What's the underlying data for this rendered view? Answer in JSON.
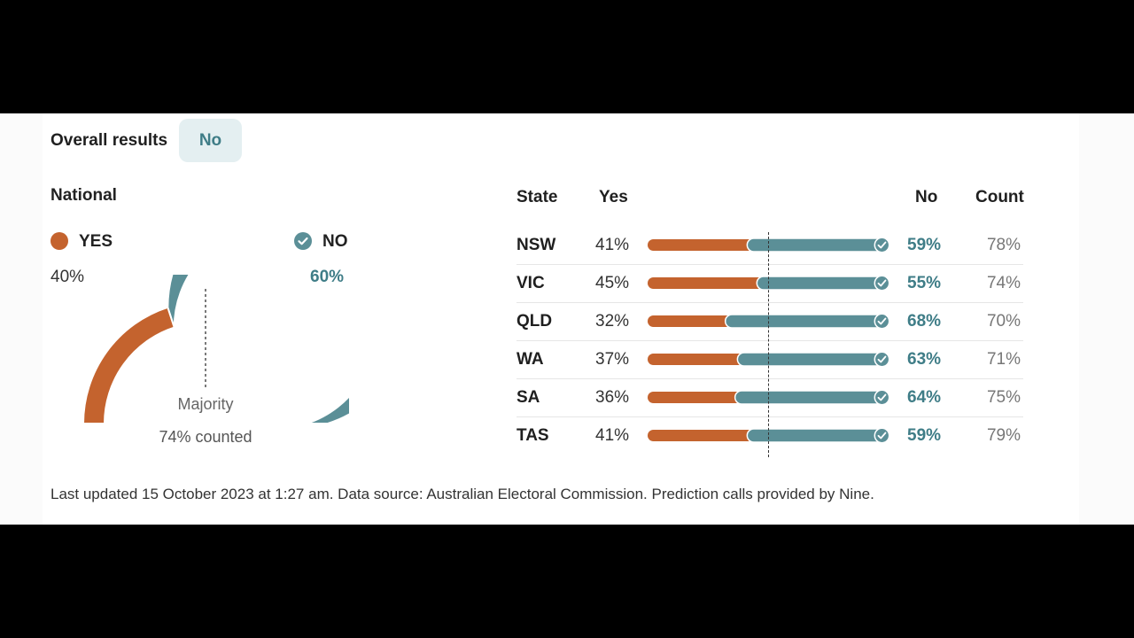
{
  "header": {
    "overall_label": "Overall results",
    "overall_result": "No"
  },
  "national": {
    "title": "National",
    "yes_label": "YES",
    "no_label": "NO",
    "yes_pct_text": "40%",
    "no_pct_text": "60%",
    "majority_label": "Majority",
    "counted_text": "74% counted"
  },
  "table": {
    "headers": {
      "state": "State",
      "yes": "Yes",
      "no": "No",
      "count": "Count"
    },
    "rows": [
      {
        "state": "NSW",
        "yes": "41%",
        "no": "59%",
        "count": "78%"
      },
      {
        "state": "VIC",
        "yes": "45%",
        "no": "55%",
        "count": "74%"
      },
      {
        "state": "QLD",
        "yes": "32%",
        "no": "68%",
        "count": "70%"
      },
      {
        "state": "WA",
        "yes": "37%",
        "no": "63%",
        "count": "71%"
      },
      {
        "state": "SA",
        "yes": "36%",
        "no": "64%",
        "count": "75%"
      },
      {
        "state": "TAS",
        "yes": "41%",
        "no": "59%",
        "count": "79%"
      }
    ]
  },
  "footer": "Last updated 15 October 2023 at 1:27 am. Data source: Australian Electoral Commission. Prediction calls provided by Nine.",
  "colors": {
    "yes": "#c4632e",
    "no": "#5b8f97",
    "accent_text": "#3f7d87",
    "badge_bg": "#e4eff1"
  },
  "icons": {
    "no_winner": "check-circle-icon"
  },
  "chart_data": [
    {
      "type": "gauge",
      "categories": [
        "YES",
        "NO"
      ],
      "values": [
        40,
        60
      ],
      "counted_percent": 74
    },
    {
      "type": "bar",
      "stacked": true,
      "categories": [
        "NSW",
        "VIC",
        "QLD",
        "WA",
        "SA",
        "TAS"
      ],
      "series": [
        {
          "name": "Yes",
          "values": [
            41,
            45,
            32,
            37,
            36,
            41
          ]
        },
        {
          "name": "No",
          "values": [
            59,
            55,
            68,
            63,
            64,
            59
          ]
        }
      ],
      "count_percent": [
        78,
        74,
        70,
        71,
        75,
        79
      ],
      "ylim": [
        0,
        100
      ]
    }
  ]
}
